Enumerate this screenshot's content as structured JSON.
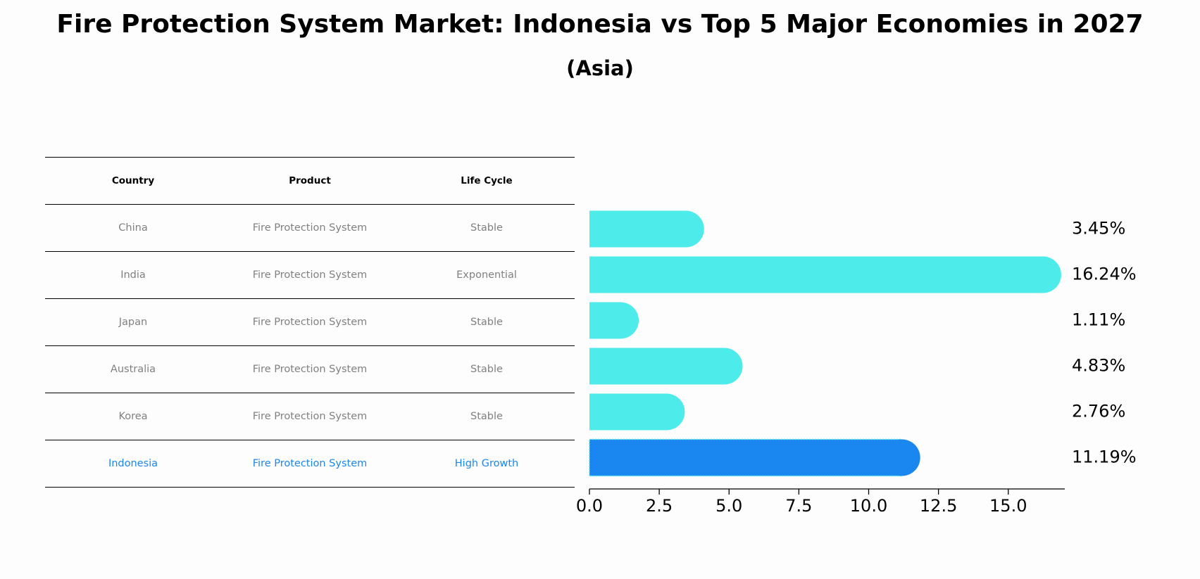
{
  "title": "Fire Protection System Market: Indonesia vs Top 5 Major Economies in 2027",
  "subtitle": "(Asia)",
  "table": {
    "headers": [
      "Country",
      "Product",
      "Life Cycle"
    ],
    "rows": [
      {
        "country": "China",
        "product": "Fire Protection System",
        "life_cycle": "Stable"
      },
      {
        "country": "India",
        "product": "Fire Protection System",
        "life_cycle": "Exponential"
      },
      {
        "country": "Japan",
        "product": "Fire Protection System",
        "life_cycle": "Stable"
      },
      {
        "country": "Australia",
        "product": "Fire Protection System",
        "life_cycle": "Stable"
      },
      {
        "country": "Korea",
        "product": "Fire Protection System",
        "life_cycle": "Stable"
      },
      {
        "country": "Indonesia",
        "product": "Fire Protection System",
        "life_cycle": "High Growth"
      }
    ]
  },
  "chart_data": {
    "type": "bar",
    "orientation": "horizontal",
    "categories": [
      "China",
      "India",
      "Japan",
      "Australia",
      "Korea",
      "Indonesia"
    ],
    "values": [
      3.45,
      16.24,
      1.11,
      4.83,
      2.76,
      11.19
    ],
    "value_labels": [
      "3.45%",
      "16.24%",
      "1.11%",
      "4.83%",
      "2.76%",
      "11.19%"
    ],
    "highlight_category": "Indonesia",
    "xticks": [
      "0.0",
      "2.5",
      "5.0",
      "7.5",
      "10.0",
      "12.5",
      "15.0"
    ],
    "xlim": [
      0,
      17
    ],
    "grid": false,
    "colors": {
      "bar": "#4deceb",
      "highlight_bar": "#1a86f0",
      "highlight_text": "#1a86f0",
      "muted_text": "#808080"
    }
  }
}
